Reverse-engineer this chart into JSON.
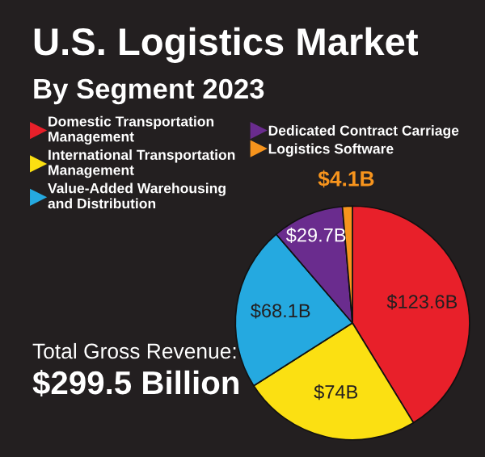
{
  "chart_data": {
    "type": "pie",
    "title": "U.S. Logistics Market",
    "subtitle": "By Segment 2023",
    "categories": [
      "Domestic Transportation\nManagement",
      "International Transportation\nManagement",
      "Value-Added Warehousing\nand Distribution",
      "Dedicated Contract Carriage",
      "Logistics Software"
    ],
    "values": [
      123.6,
      74,
      68.1,
      29.7,
      4.1
    ],
    "colors": [
      "#e8202a",
      "#fbe012",
      "#25a9e0",
      "#6a2c8e",
      "#f7941d"
    ],
    "value_labels": [
      "$123.6B",
      "$74B",
      "$68.1B",
      "$29.7B",
      "$4.1B"
    ],
    "legend": "top left",
    "annotations": [
      "Total Gross Revenue:",
      "$299.5 Billion"
    ]
  }
}
